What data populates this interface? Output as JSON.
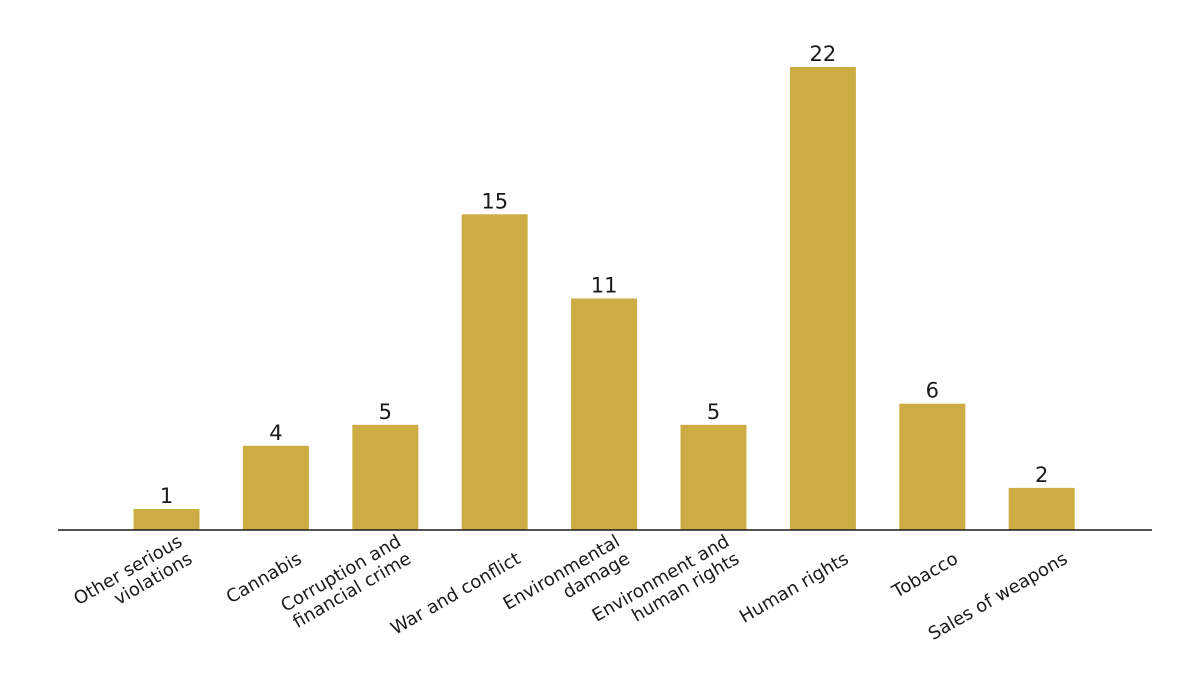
{
  "chart_data": {
    "type": "bar",
    "categories": [
      [
        "Other serious",
        "violations"
      ],
      [
        "Cannabis"
      ],
      [
        "Corruption and",
        "financial crime"
      ],
      [
        "War and conflict"
      ],
      [
        "Environmental",
        "damage"
      ],
      [
        "Environment and",
        "human rights"
      ],
      [
        "Human rights"
      ],
      [
        "Tobacco"
      ],
      [
        "Sales of weapons"
      ]
    ],
    "values": [
      1,
      4,
      5,
      15,
      11,
      5,
      22,
      6,
      2
    ],
    "data_labels": [
      "1",
      "4",
      "5",
      "15",
      "11",
      "5",
      "22",
      "6",
      "2"
    ],
    "ylim": [
      0,
      22
    ],
    "grid": false,
    "legend": "none",
    "bar_color": "#ceac44"
  }
}
